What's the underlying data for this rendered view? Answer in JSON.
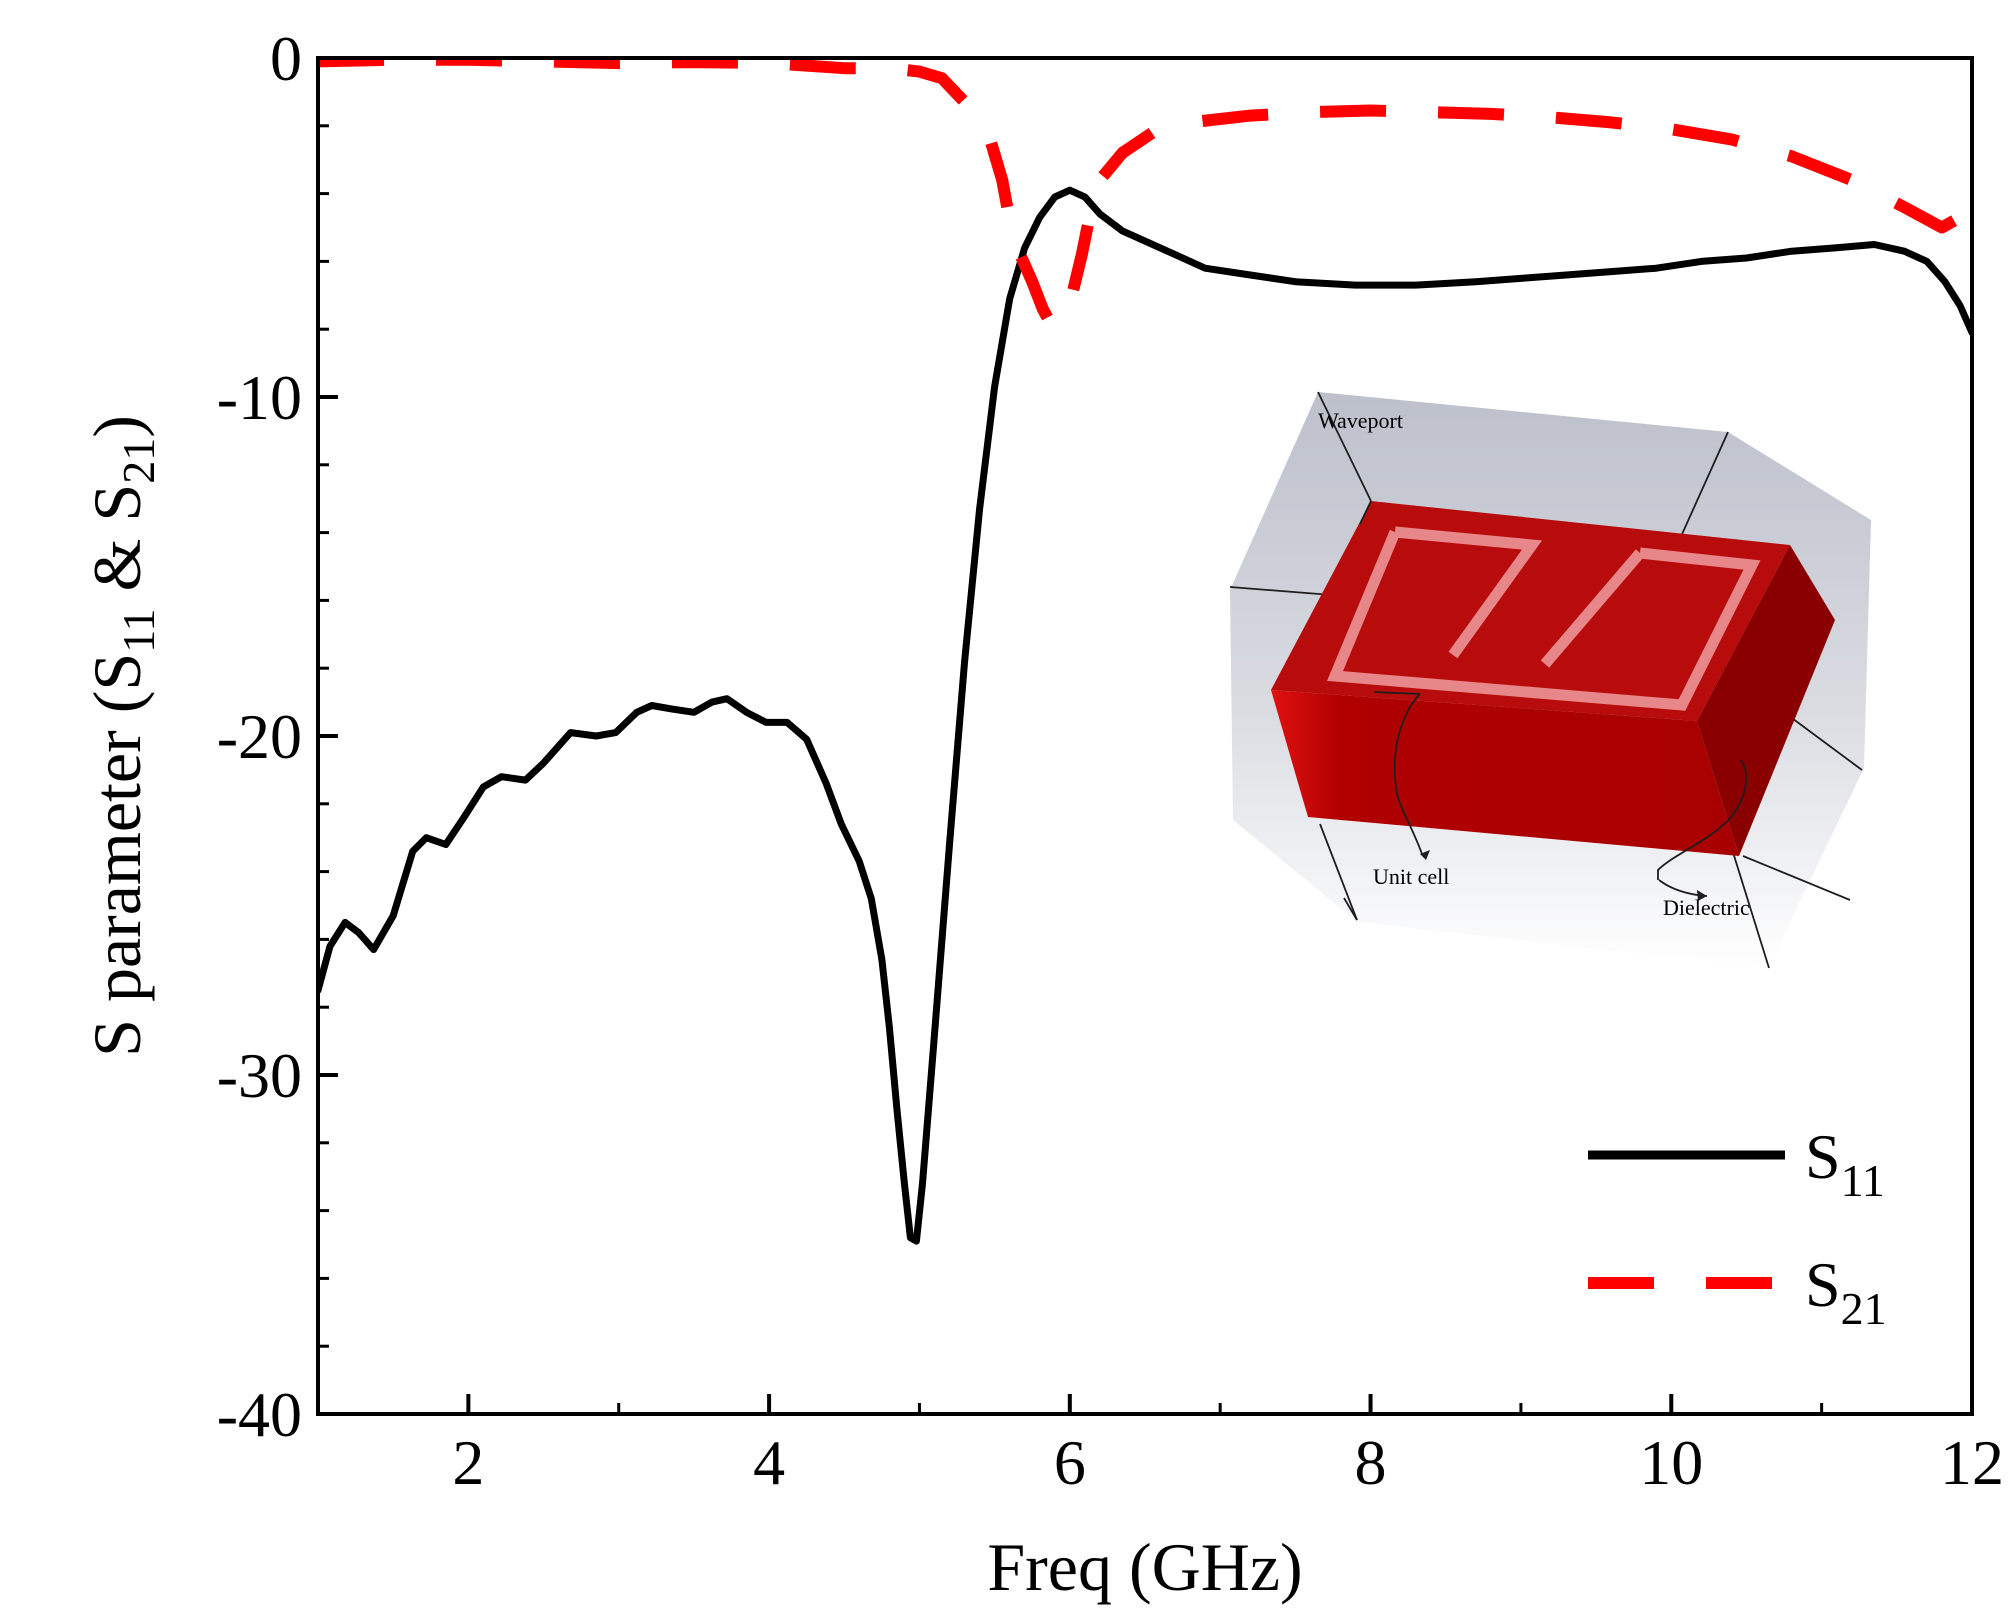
{
  "chart_data": {
    "type": "line",
    "xlabel": "Freq (GHz)",
    "ylabel": {
      "prefix": "S parameter (S",
      "sub1": "11",
      "mid": " & S",
      "sub2": "21",
      "suffix": ")"
    },
    "xlim": [
      1,
      12
    ],
    "ylim": [
      -40,
      0
    ],
    "x_ticks": [
      2,
      4,
      6,
      8,
      10,
      12
    ],
    "y_ticks": [
      0,
      -10,
      -20,
      -30,
      -40
    ],
    "x_tick_labels": [
      "2",
      "4",
      "6",
      "8",
      "10",
      "12"
    ],
    "y_tick_labels": [
      "0",
      "-10",
      "-20",
      "-30",
      "-40"
    ],
    "legend_position": "bottom-right",
    "series": [
      {
        "name": "S11",
        "name_main": "S",
        "name_sub": "11",
        "color": "#000000",
        "dash": "solid",
        "points": [
          [
            1.0,
            -27.5
          ],
          [
            1.08,
            -26.2
          ],
          [
            1.18,
            -25.5
          ],
          [
            1.27,
            -25.8
          ],
          [
            1.37,
            -26.3
          ],
          [
            1.5,
            -25.3
          ],
          [
            1.63,
            -23.4
          ],
          [
            1.72,
            -23.0
          ],
          [
            1.85,
            -23.2
          ],
          [
            1.97,
            -22.4
          ],
          [
            2.1,
            -21.5
          ],
          [
            2.22,
            -21.2
          ],
          [
            2.38,
            -21.3
          ],
          [
            2.5,
            -20.8
          ],
          [
            2.68,
            -19.9
          ],
          [
            2.85,
            -20.0
          ],
          [
            2.98,
            -19.9
          ],
          [
            3.12,
            -19.3
          ],
          [
            3.22,
            -19.1
          ],
          [
            3.35,
            -19.2
          ],
          [
            3.5,
            -19.3
          ],
          [
            3.62,
            -19.0
          ],
          [
            3.72,
            -18.9
          ],
          [
            3.85,
            -19.3
          ],
          [
            3.98,
            -19.6
          ],
          [
            4.12,
            -19.6
          ],
          [
            4.25,
            -20.1
          ],
          [
            4.38,
            -21.4
          ],
          [
            4.48,
            -22.6
          ],
          [
            4.6,
            -23.7
          ],
          [
            4.68,
            -24.8
          ],
          [
            4.75,
            -26.6
          ],
          [
            4.8,
            -28.6
          ],
          [
            4.85,
            -31.0
          ],
          [
            4.9,
            -33.2
          ],
          [
            4.94,
            -34.8
          ],
          [
            4.98,
            -34.9
          ],
          [
            5.02,
            -33.2
          ],
          [
            5.1,
            -28.8
          ],
          [
            5.2,
            -23.2
          ],
          [
            5.3,
            -17.8
          ],
          [
            5.4,
            -13.3
          ],
          [
            5.5,
            -9.7
          ],
          [
            5.6,
            -7.1
          ],
          [
            5.7,
            -5.6
          ],
          [
            5.8,
            -4.7
          ],
          [
            5.9,
            -4.1
          ],
          [
            6.0,
            -3.9
          ],
          [
            6.1,
            -4.1
          ],
          [
            6.2,
            -4.6
          ],
          [
            6.35,
            -5.1
          ],
          [
            6.5,
            -5.4
          ],
          [
            6.7,
            -5.8
          ],
          [
            6.9,
            -6.2
          ],
          [
            7.2,
            -6.4
          ],
          [
            7.5,
            -6.6
          ],
          [
            7.9,
            -6.7
          ],
          [
            8.3,
            -6.7
          ],
          [
            8.7,
            -6.6
          ],
          [
            9.0,
            -6.5
          ],
          [
            9.3,
            -6.4
          ],
          [
            9.6,
            -6.3
          ],
          [
            9.9,
            -6.2
          ],
          [
            10.2,
            -6.0
          ],
          [
            10.5,
            -5.9
          ],
          [
            10.8,
            -5.7
          ],
          [
            11.1,
            -5.6
          ],
          [
            11.35,
            -5.5
          ],
          [
            11.55,
            -5.7
          ],
          [
            11.7,
            -6.0
          ],
          [
            11.82,
            -6.6
          ],
          [
            11.92,
            -7.3
          ],
          [
            12.0,
            -8.1
          ]
        ]
      },
      {
        "name": "S21",
        "name_main": "S",
        "name_sub": "21",
        "color": "#ff0000",
        "dash": "dashed",
        "points": [
          [
            1.0,
            -0.1
          ],
          [
            1.5,
            -0.05
          ],
          [
            2.0,
            -0.05
          ],
          [
            2.5,
            -0.1
          ],
          [
            3.0,
            -0.15
          ],
          [
            3.5,
            -0.12
          ],
          [
            4.0,
            -0.15
          ],
          [
            4.5,
            -0.3
          ],
          [
            4.8,
            -0.3
          ],
          [
            5.0,
            -0.4
          ],
          [
            5.15,
            -0.6
          ],
          [
            5.3,
            -1.3
          ],
          [
            5.45,
            -2.1
          ],
          [
            5.55,
            -3.6
          ],
          [
            5.6,
            -4.8
          ],
          [
            5.67,
            -5.8
          ],
          [
            5.75,
            -6.6
          ],
          [
            5.82,
            -7.4
          ],
          [
            5.88,
            -7.9
          ],
          [
            5.95,
            -7.6
          ],
          [
            6.02,
            -6.9
          ],
          [
            6.08,
            -5.8
          ],
          [
            6.13,
            -4.7
          ],
          [
            6.2,
            -3.6
          ],
          [
            6.35,
            -2.8
          ],
          [
            6.55,
            -2.2
          ],
          [
            6.8,
            -1.9
          ],
          [
            7.2,
            -1.7
          ],
          [
            7.6,
            -1.6
          ],
          [
            8.0,
            -1.55
          ],
          [
            8.4,
            -1.6
          ],
          [
            8.8,
            -1.65
          ],
          [
            9.2,
            -1.75
          ],
          [
            9.6,
            -1.9
          ],
          [
            10.0,
            -2.1
          ],
          [
            10.4,
            -2.4
          ],
          [
            10.8,
            -2.9
          ],
          [
            11.2,
            -3.6
          ],
          [
            11.55,
            -4.4
          ],
          [
            11.8,
            -5.0
          ],
          [
            12.0,
            -4.5
          ]
        ]
      }
    ],
    "inset": {
      "labels": {
        "waveport": "Waveport",
        "unit_cell": "Unit cell",
        "dielectric": "Dielectric"
      }
    }
  }
}
